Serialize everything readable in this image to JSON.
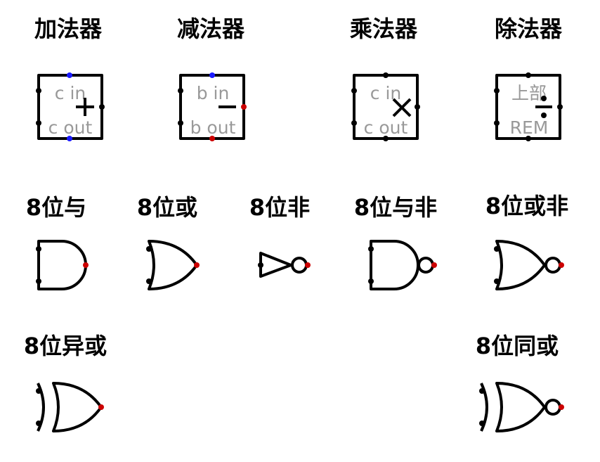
{
  "colors": {
    "stroke": "#000000",
    "pin_black": "#000000",
    "pin_blue": "#1a1aff",
    "pin_red": "#cc0000",
    "label_gray": "#999999"
  },
  "components": [
    {
      "id": "adder",
      "title": "加法器",
      "symbol": "plus-icon",
      "top_label": "c in",
      "bottom_label": "c out"
    },
    {
      "id": "subtractor",
      "title": "减法器",
      "symbol": "minus-icon",
      "top_label": "b in",
      "bottom_label": "b out"
    },
    {
      "id": "multiplier",
      "title": "乘法器",
      "symbol": "times-icon",
      "top_label": "c in",
      "bottom_label": "c out"
    },
    {
      "id": "divider",
      "title": "除法器",
      "symbol": "divide-icon",
      "top_label": "上部",
      "bottom_label": "REM"
    },
    {
      "id": "and8",
      "title": "8位与",
      "symbol": "and-gate-icon"
    },
    {
      "id": "or8",
      "title": "8位或",
      "symbol": "or-gate-icon"
    },
    {
      "id": "not8",
      "title": "8位非",
      "symbol": "not-gate-icon"
    },
    {
      "id": "nand8",
      "title": "8位与非",
      "symbol": "nand-gate-icon"
    },
    {
      "id": "nor8",
      "title": "8位或非",
      "symbol": "nor-gate-icon"
    },
    {
      "id": "xor8",
      "title": "8位异或",
      "symbol": "xor-gate-icon"
    },
    {
      "id": "xnor8",
      "title": "8位同或",
      "symbol": "xnor-gate-icon"
    }
  ]
}
